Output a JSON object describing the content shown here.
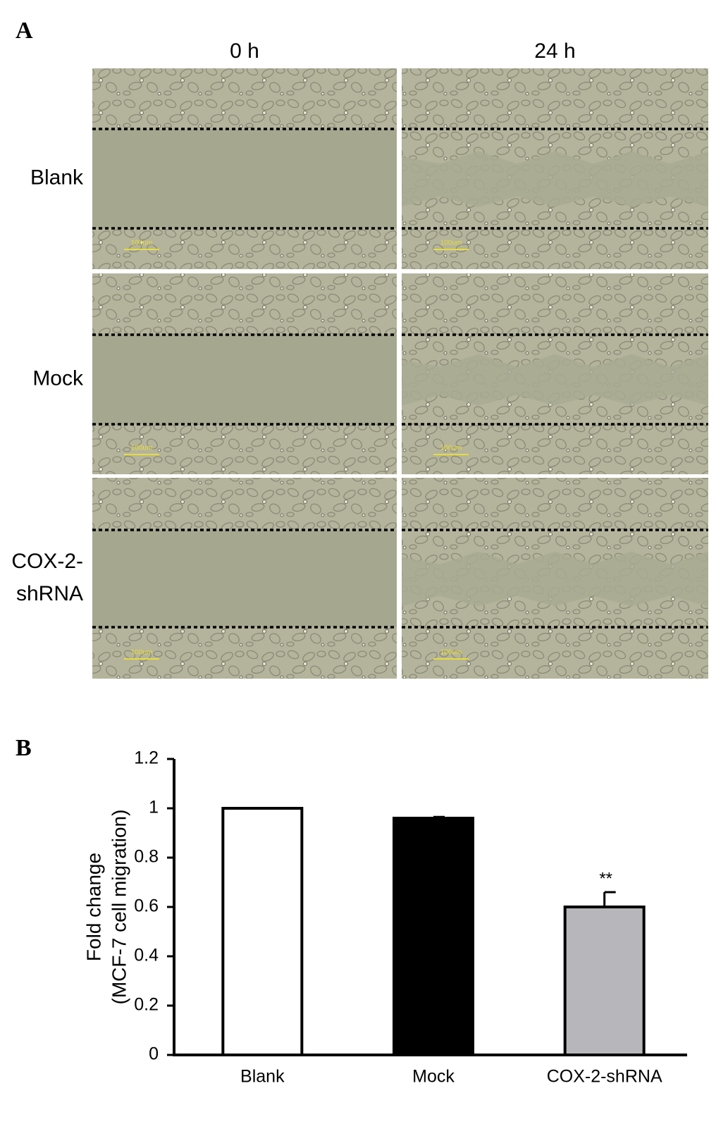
{
  "panel_a": {
    "label": "A",
    "columns": [
      "0 h",
      "24 h"
    ],
    "rows": [
      [
        "Blank"
      ],
      [
        "Mock"
      ],
      [
        "COX-2-",
        "shRNA"
      ]
    ],
    "scale_bar": "100um"
  },
  "chart_data": {
    "type": "bar",
    "label": "B",
    "ylabel": [
      "Fold change",
      "(MCF-7 cell migration)"
    ],
    "categories": [
      "Blank",
      "Mock",
      "COX-2-shRNA"
    ],
    "values": [
      1.0,
      0.96,
      0.6
    ],
    "errors": [
      0,
      0.005,
      0.06
    ],
    "colors": [
      "#ffffff",
      "#000000",
      "#b7b7bb"
    ],
    "annotation": "**",
    "ylim": [
      0,
      1.2
    ],
    "yticks": [
      0,
      0.2,
      0.4,
      0.6,
      0.8,
      1,
      1.2
    ],
    "grid": false
  }
}
